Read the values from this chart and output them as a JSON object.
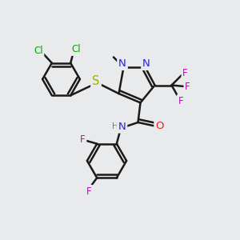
{
  "bg_color": "#e8eaec",
  "bond_color": "#1a1a1a",
  "bond_width": 1.8,
  "atom_colors": {
    "C": "#1a1a1a",
    "H": "#4a8a7a",
    "N": "#2222ee",
    "O": "#ee2222",
    "S": "#aaaa00",
    "F": "#cc00cc",
    "Cl": "#00aa00"
  },
  "font_size": 8.5
}
